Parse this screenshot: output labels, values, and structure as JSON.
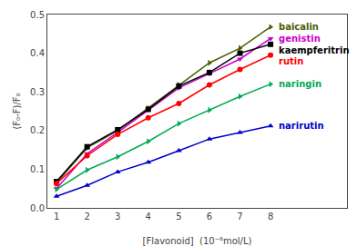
{
  "chart_data": {
    "type": "line",
    "x": [
      1,
      2,
      3,
      4,
      5,
      6,
      7,
      8
    ],
    "series": [
      {
        "name": "baicalin",
        "color": "#4A6000",
        "marker": "triangle-right",
        "values": [
          0.065,
          0.155,
          0.2,
          0.258,
          0.318,
          0.375,
          0.413,
          0.468
        ]
      },
      {
        "name": "genistin",
        "color": "#CC00CC",
        "marker": "triangle-down",
        "values": [
          0.05,
          0.14,
          0.195,
          0.253,
          0.31,
          0.347,
          0.385,
          0.438
        ]
      },
      {
        "name": "kaempferitrin",
        "color": "#000000",
        "marker": "square",
        "values": [
          0.068,
          0.158,
          0.202,
          0.255,
          0.315,
          0.35,
          0.4,
          0.423
        ]
      },
      {
        "name": "rutin",
        "color": "#FF0000",
        "marker": "circle",
        "values": [
          0.063,
          0.135,
          0.19,
          0.233,
          0.27,
          0.318,
          0.358,
          0.395
        ]
      },
      {
        "name": "naringin",
        "color": "#00AA55",
        "marker": "triangle-right",
        "values": [
          0.048,
          0.098,
          0.132,
          0.172,
          0.218,
          0.253,
          0.288,
          0.32
        ]
      },
      {
        "name": "narirutin",
        "color": "#0000CC",
        "marker": "triangle-up",
        "values": [
          0.03,
          0.058,
          0.093,
          0.118,
          0.148,
          0.178,
          0.195,
          0.212
        ]
      }
    ],
    "xlabel": "[Flavonoid]  (10⁻⁶mol/L)",
    "ylabel": "(F₀-F)/F₀",
    "xlim": [
      0.7,
      10.5
    ],
    "ylim": [
      0.0,
      0.5
    ],
    "xticks": [
      1,
      2,
      3,
      4,
      5,
      6,
      7,
      8
    ],
    "yticks": [
      {
        "value": 0,
        "label": "0.0"
      },
      0.1,
      0.2,
      0.3,
      0.4,
      0.5
    ],
    "grid": false
  }
}
